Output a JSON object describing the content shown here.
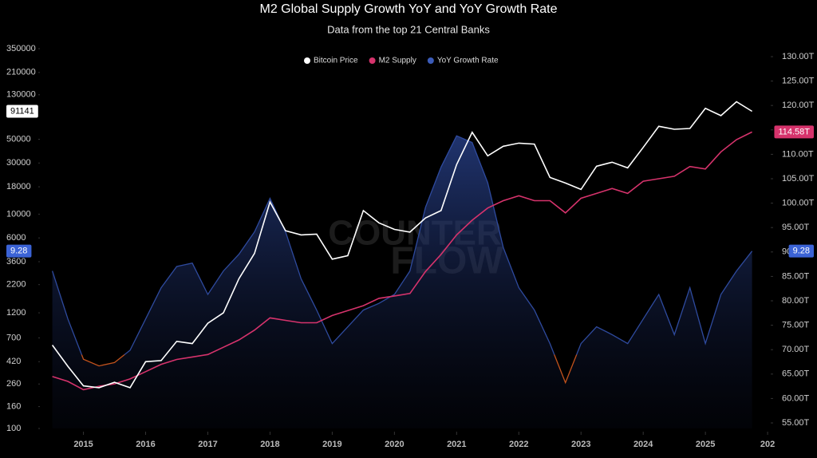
{
  "chart_data": {
    "type": "line",
    "title": "M2 Global Supply Growth YoY and YoY Growth Rate",
    "subtitle": "Data from the top 21 Central Banks",
    "watermark": [
      "COUNTER",
      "FLOW"
    ],
    "x": [
      2014.5,
      2014.75,
      2015.0,
      2015.25,
      2015.5,
      2015.75,
      2016.0,
      2016.25,
      2016.5,
      2016.75,
      2017.0,
      2017.25,
      2017.5,
      2017.75,
      2018.0,
      2018.25,
      2018.5,
      2018.75,
      2019.0,
      2019.25,
      2019.5,
      2019.75,
      2020.0,
      2020.25,
      2020.5,
      2020.75,
      2021.0,
      2021.25,
      2021.5,
      2021.75,
      2022.0,
      2022.25,
      2022.5,
      2022.75,
      2023.0,
      2023.25,
      2023.5,
      2023.75,
      2024.0,
      2024.25,
      2024.5,
      2024.75,
      2025.0,
      2025.25,
      2025.5,
      2025.75
    ],
    "xlim": [
      2014.3,
      2026.05
    ],
    "xticks": [
      2015,
      2016,
      2017,
      2018,
      2019,
      2020,
      2021,
      2022,
      2023,
      2024,
      2025,
      {
        "value": 2026,
        "label": "202"
      }
    ],
    "ylog": true,
    "ylim": [
      100,
      350000
    ],
    "yticks": [
      100,
      160,
      260,
      420,
      700,
      1200,
      2200,
      3600,
      6000,
      10000,
      18000,
      30000,
      50000,
      130000,
      210000,
      350000
    ],
    "y2lim": [
      53.86,
      131.63
    ],
    "y2ticks": [
      {
        "value": 55,
        "label": "55.00T"
      },
      {
        "value": 60,
        "label": "60.00T"
      },
      {
        "value": 65,
        "label": "65.00T"
      },
      {
        "value": 70,
        "label": "70.00T"
      },
      {
        "value": 75,
        "label": "75.00T"
      },
      {
        "value": 80,
        "label": "80.00T"
      },
      {
        "value": 85,
        "label": "85.00T"
      },
      {
        "value": 90,
        "label": "90.00T"
      },
      {
        "value": 95,
        "label": "95.00T"
      },
      {
        "value": 100,
        "label": "100.00T"
      },
      {
        "value": 105,
        "label": "105.00T"
      },
      {
        "value": 110,
        "label": "110.00T"
      },
      {
        "value": 115,
        "label": "115.00T"
      },
      {
        "value": 120,
        "label": "120.00T"
      },
      {
        "value": 125,
        "label": "125.00T"
      },
      {
        "value": 130,
        "label": "130.00T"
      }
    ],
    "y3lim": [
      -6.6,
      27.4
    ],
    "grid": false,
    "legend": "top",
    "series": [
      {
        "name": "Bitcoin Price",
        "color": "#ffffff",
        "axis": "y",
        "values": [
          600,
          380,
          250,
          240,
          270,
          240,
          420,
          430,
          650,
          620,
          960,
          1200,
          2500,
          4300,
          13000,
          7000,
          6400,
          6500,
          3800,
          4100,
          10800,
          8300,
          7200,
          6800,
          9200,
          10800,
          29000,
          58000,
          35000,
          43000,
          46000,
          45000,
          22000,
          19500,
          17000,
          28000,
          30500,
          27000,
          42000,
          66000,
          62000,
          63000,
          97000,
          83000,
          112000,
          91141
        ]
      },
      {
        "name": "M2 Supply",
        "color": "#d6336c",
        "axis": "y2",
        "values": [
          64.5,
          63.5,
          61.8,
          62.5,
          63,
          64,
          65.5,
          67,
          68,
          68.5,
          69,
          70.5,
          72,
          74,
          76.5,
          76,
          75.5,
          75.5,
          77,
          78,
          79,
          80.5,
          81,
          81.5,
          86,
          89.5,
          93.5,
          96.5,
          99,
          100.5,
          101.5,
          100.5,
          100.5,
          98,
          101,
          102,
          103,
          102,
          104.5,
          105,
          105.5,
          107.5,
          107,
          110.5,
          113,
          114.58
        ]
      },
      {
        "name": "YoY Growth Rate",
        "color": "#2e4a9e",
        "negative_color": "#c2521c",
        "axis": "y3",
        "values": [
          7.5,
          3.2,
          -0.4,
          -1,
          -0.7,
          0.4,
          3.2,
          6,
          7.9,
          8.2,
          5.4,
          7.5,
          9,
          11,
          14,
          11,
          6.8,
          4,
          1,
          2.5,
          4,
          4.6,
          5.4,
          7.5,
          13.2,
          16.8,
          19.6,
          19,
          15.4,
          9.6,
          6,
          4,
          1,
          -2.5,
          1,
          2.5,
          1.8,
          1,
          3.2,
          5.4,
          1.8,
          6,
          1,
          5.4,
          7.5,
          9.28
        ]
      }
    ],
    "badges": [
      {
        "label": "91141",
        "value": 91141,
        "axis": "y",
        "side": "left",
        "color": "#ffffff",
        "text_color": "#000000"
      },
      {
        "label": "9.28",
        "value": 9.28,
        "axis": "y3",
        "side": "left",
        "color": "#3b63d6",
        "text_color": "#ffffff"
      },
      {
        "label": "114.58T",
        "value": 114.58,
        "axis": "y2",
        "side": "right",
        "color": "#d6336c",
        "text_color": "#ffffff"
      },
      {
        "label": "9.28",
        "value": 9.28,
        "axis": "y3",
        "side": "right",
        "color": "#3b63d6",
        "text_color": "#ffffff"
      }
    ]
  }
}
